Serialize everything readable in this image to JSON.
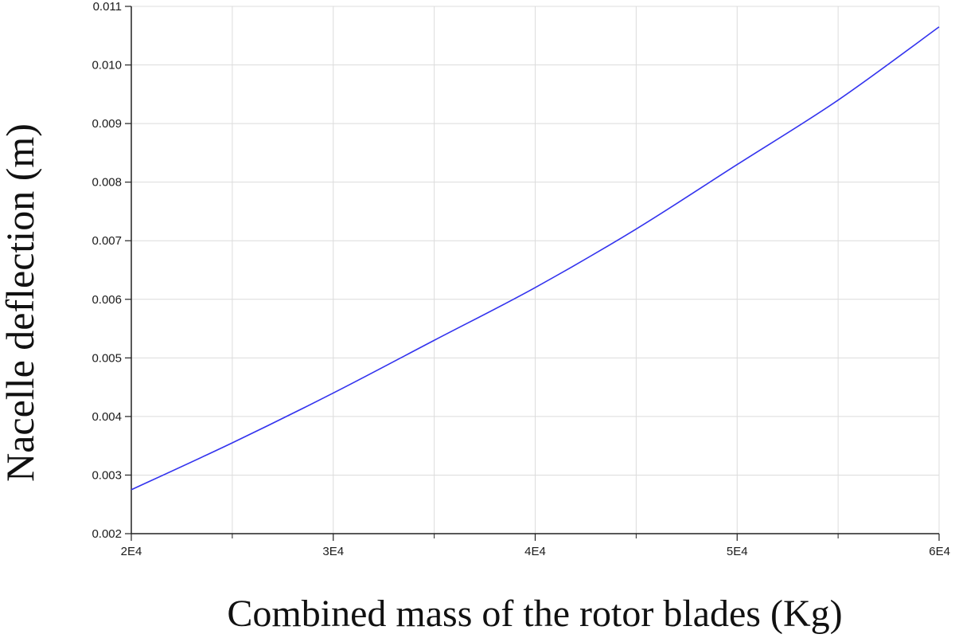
{
  "chart_data": {
    "type": "line",
    "title": "",
    "xlabel": "Combined mass of the rotor blades (Kg)",
    "ylabel": "Nacelle deflection (m)",
    "xlim": [
      20000,
      60000
    ],
    "ylim": [
      0.002,
      0.011
    ],
    "x_ticks": [
      20000,
      30000,
      40000,
      50000,
      60000
    ],
    "x_tick_labels": [
      "2E4",
      "3E4",
      "4E4",
      "5E4",
      "6E4"
    ],
    "x_minor_ticks": [
      25000,
      35000,
      45000,
      55000
    ],
    "y_ticks": [
      0.002,
      0.003,
      0.004,
      0.005,
      0.006,
      0.007,
      0.008,
      0.009,
      0.01,
      0.011
    ],
    "y_tick_labels": [
      "0.002",
      "0.003",
      "0.004",
      "0.005",
      "0.006",
      "0.007",
      "0.008",
      "0.009",
      "0.010",
      "0.011"
    ],
    "grid": true,
    "series": [
      {
        "color": "#3333ee",
        "x": [
          20000,
          25000,
          30000,
          35000,
          40000,
          45000,
          50000,
          55000,
          60000
        ],
        "y": [
          0.00275,
          0.00355,
          0.0044,
          0.0053,
          0.0062,
          0.0072,
          0.0083,
          0.0094,
          0.01065
        ]
      }
    ]
  }
}
